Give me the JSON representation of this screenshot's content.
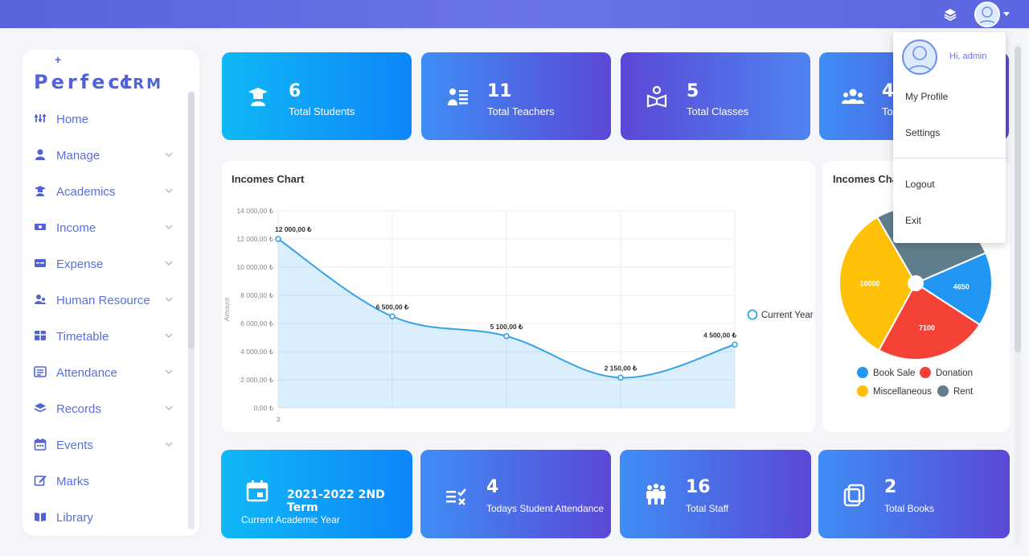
{
  "app": {
    "logo_main": "Perfect",
    "logo_sub": "CRM"
  },
  "topbar": {
    "layers_icon": "layers-icon",
    "avatar_icon": "user-avatar-icon"
  },
  "user_menu": {
    "greeting": "Hi, admin",
    "items": [
      "My Profile",
      "Settings",
      "Logout",
      "Exit"
    ]
  },
  "sidebar": {
    "items": [
      {
        "label": "Home",
        "icon": "sliders-icon",
        "has_chevron": false
      },
      {
        "label": "Manage",
        "icon": "user-icon",
        "has_chevron": true
      },
      {
        "label": "Academics",
        "icon": "graduate-icon",
        "has_chevron": true
      },
      {
        "label": "Income",
        "icon": "money-icon",
        "has_chevron": true
      },
      {
        "label": "Expense",
        "icon": "card-icon",
        "has_chevron": true
      },
      {
        "label": "Human Resource",
        "icon": "users-icon",
        "has_chevron": true
      },
      {
        "label": "Timetable",
        "icon": "table-icon",
        "has_chevron": true
      },
      {
        "label": "Attendance",
        "icon": "list-icon",
        "has_chevron": true
      },
      {
        "label": "Records",
        "icon": "layers-icon",
        "has_chevron": true
      },
      {
        "label": "Events",
        "icon": "calendar-icon",
        "has_chevron": true
      },
      {
        "label": "Marks",
        "icon": "edit-icon",
        "has_chevron": false
      },
      {
        "label": "Library",
        "icon": "book-icon",
        "has_chevron": false
      }
    ]
  },
  "stats_top": [
    {
      "value": "6",
      "label": "Total Students",
      "icon": "graduate-icon"
    },
    {
      "value": "11",
      "label": "Total Teachers",
      "icon": "teacher-icon"
    },
    {
      "value": "5",
      "label": "Total Classes",
      "icon": "classes-icon"
    },
    {
      "value": "4",
      "label": "Tot",
      "icon": "group-icon"
    }
  ],
  "stats_bottom": [
    {
      "value": "2021-2022 2ND Term",
      "label": "Current Academic Year",
      "icon": "calendar-icon"
    },
    {
      "value": "4",
      "label": "Todays Student Attendance",
      "icon": "checklist-icon"
    },
    {
      "value": "16",
      "label": "Total Staff",
      "icon": "staff-icon"
    },
    {
      "value": "2",
      "label": "Total Books",
      "icon": "books-icon"
    }
  ],
  "line_panel": {
    "title": "Incomes Chart"
  },
  "pie_panel": {
    "title": "Incomes Chart"
  },
  "chart_data": [
    {
      "type": "area",
      "title": "Incomes Chart",
      "ylabel": "Amount",
      "xlabel": "",
      "x_tick_labels": [
        "3"
      ],
      "ylim": [
        0,
        14000
      ],
      "y_ticks": [
        "0,00 ₺",
        "2 000,00 ₺",
        "4 000,00 ₺",
        "6 000,00 ₺",
        "8 000,00 ₺",
        "10 000,00 ₺",
        "12 000,00 ₺",
        "14 000,00 ₺"
      ],
      "series": [
        {
          "name": "Current Year",
          "color": "#36a2eb",
          "values": [
            12000,
            6500,
            5100,
            2150,
            4500
          ],
          "labels": [
            "12 000,00 ₺",
            "6 500,00 ₺",
            "5 100,00 ₺",
            "2 150,00 ₺",
            "4 500,00 ₺"
          ]
        }
      ],
      "grid": true,
      "legend": "right"
    },
    {
      "type": "pie",
      "slices": [
        {
          "name": "Book Sale",
          "value": 4650,
          "color": "#2196f3"
        },
        {
          "name": "Donation",
          "value": 7100,
          "color": "#f44336"
        },
        {
          "name": "Miscellaneous",
          "value": 10000,
          "color": "#ffc107"
        },
        {
          "name": "Rent",
          "value": 8000,
          "color": "#607d8b"
        }
      ],
      "legend": "bottom"
    }
  ]
}
